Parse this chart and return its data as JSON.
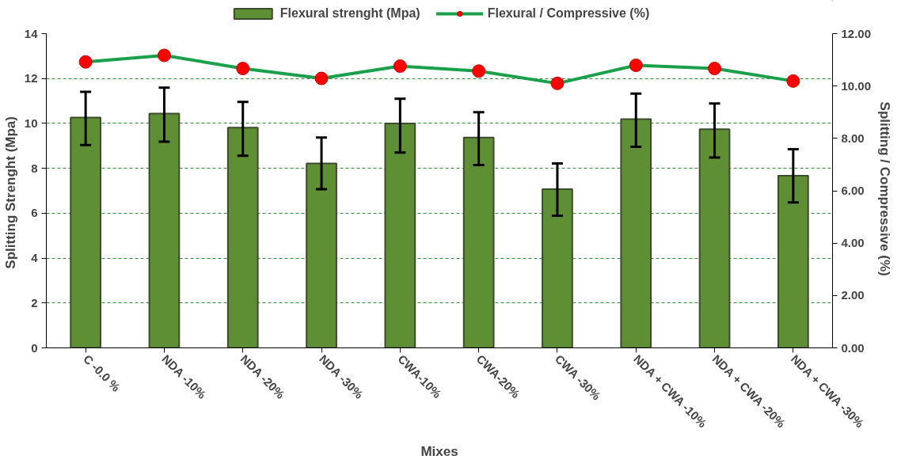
{
  "chart_data": {
    "type": "bar",
    "xlabel": "Mixes",
    "ylabel": "Splitting  Strenght (Mpa)",
    "y2label": "Splitting  / Compressive (%)",
    "categories": [
      "C -0.0 %",
      "NDA -10%",
      "NDA -20%",
      "NDA -30%",
      "CWA-10%",
      "CWA-20%",
      "CWA -30%",
      "NDA +  CWA -10%",
      "NDA +  CWA -20%",
      "NDA +  CWA -30%"
    ],
    "series": [
      {
        "name": "Flexural strenght (Mpa)",
        "color": "#5e8f35",
        "values": [
          10.26,
          10.44,
          9.81,
          8.22,
          10.0,
          9.37,
          7.07,
          10.19,
          9.74,
          7.67
        ],
        "errors": [
          [
            9.04,
            11.41
          ],
          [
            9.19,
            11.59
          ],
          [
            8.56,
            10.96
          ],
          [
            7.07,
            9.37
          ],
          [
            8.7,
            11.1
          ],
          [
            8.15,
            10.5
          ],
          [
            5.89,
            8.22
          ],
          [
            8.96,
            11.33
          ],
          [
            8.48,
            10.89
          ],
          [
            6.48,
            8.85
          ]
        ]
      },
      {
        "name": "Flexural / Compressive (%)",
        "type": "line",
        "axis": "y2",
        "color": "#1aa04a",
        "marker": "circle",
        "values": [
          10.92,
          11.17,
          10.67,
          10.29,
          10.76,
          10.57,
          10.1,
          10.79,
          10.67,
          10.19
        ]
      }
    ],
    "ylim": [
      0,
      14
    ],
    "yticks": [
      0,
      2,
      4,
      6,
      8,
      10,
      12,
      14
    ],
    "y2lim": [
      0,
      12
    ],
    "y2ticks": [
      {
        "value": 0,
        "label": "0.00"
      },
      {
        "value": 2,
        "label": "2.00"
      },
      {
        "value": 4,
        "label": "4.00"
      },
      {
        "value": 6,
        "label": "6.00"
      },
      {
        "value": 8,
        "label": "8.00"
      },
      {
        "value": 10,
        "label": "10.00"
      },
      {
        "value": 12,
        "label": "12.00"
      }
    ],
    "grid": "y",
    "legend": "top"
  }
}
